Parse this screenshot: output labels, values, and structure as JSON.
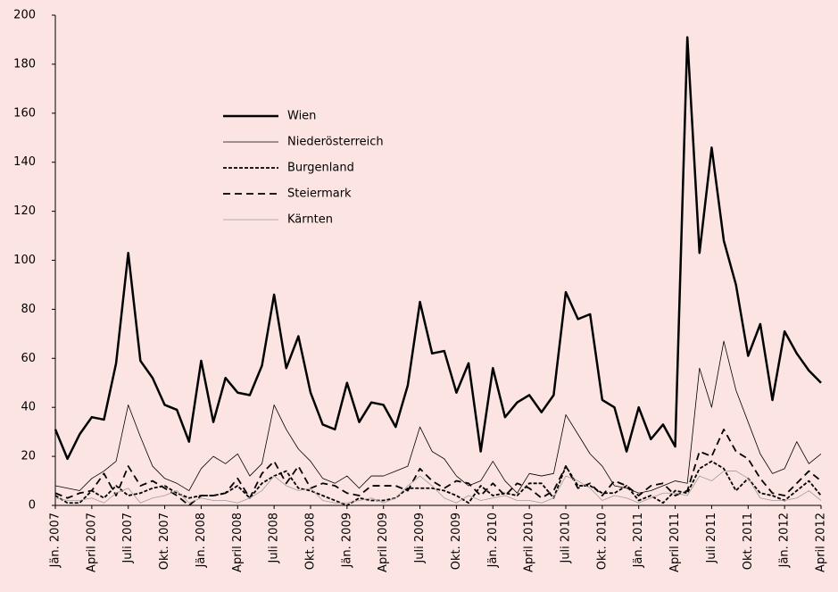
{
  "chart_data": {
    "type": "line",
    "categories": [
      "Jän. 2007",
      null,
      null,
      "April 2007",
      null,
      null,
      "Juli 2007",
      null,
      null,
      "Okt. 2007",
      null,
      null,
      "Jän. 2008",
      null,
      null,
      "April 2008",
      null,
      null,
      "Juli 2008",
      null,
      null,
      "Okt. 2008",
      null,
      null,
      "Jän. 2009",
      null,
      null,
      "April 2009",
      null,
      null,
      "Juli 2009",
      null,
      null,
      "Okt. 2009",
      null,
      null,
      "Jän. 2010",
      null,
      null,
      "April 2010",
      null,
      null,
      "Juli 2010",
      null,
      null,
      "Okt. 2010",
      null,
      null,
      "Jän. 2011",
      null,
      null,
      "April 2011",
      null,
      null,
      "Juli 2011",
      null,
      null,
      "Okt. 2011",
      null,
      null,
      "Jän. 2012",
      null,
      null,
      "April 2012"
    ],
    "series": [
      {
        "name": "Wien",
        "color": "#000000",
        "width": 2.5,
        "dash": "solid",
        "values": [
          31,
          19,
          29,
          36,
          35,
          58,
          103,
          59,
          52,
          41,
          39,
          26,
          59,
          34,
          52,
          46,
          45,
          57,
          86,
          56,
          69,
          46,
          33,
          31,
          50,
          34,
          42,
          41,
          32,
          49,
          83,
          62,
          63,
          46,
          58,
          22,
          56,
          36,
          42,
          45,
          38,
          45,
          87,
          76,
          78,
          43,
          40,
          22,
          40,
          27,
          33,
          24,
          191,
          103,
          146,
          108,
          90,
          61,
          74,
          43,
          71,
          62,
          55,
          50
        ]
      },
      {
        "name": "Niederösterreich",
        "color": "#000000",
        "width": 0.8,
        "dash": "solid",
        "values": [
          8,
          7,
          6,
          11,
          14,
          18,
          41,
          28,
          16,
          11,
          9,
          6,
          15,
          20,
          17,
          21,
          12,
          17,
          41,
          31,
          23,
          18,
          11,
          9,
          12,
          7,
          12,
          12,
          14,
          16,
          32,
          22,
          19,
          12,
          8,
          10,
          18,
          10,
          5,
          13,
          12,
          13,
          37,
          29,
          21,
          16,
          8,
          7,
          5,
          6,
          8,
          10,
          9,
          56,
          40,
          67,
          47,
          34,
          21,
          13,
          15,
          26,
          17,
          21
        ]
      },
      {
        "name": "Burgenland",
        "color": "#000000",
        "width": 1.8,
        "dash": "dotted",
        "values": [
          4,
          1,
          1,
          6,
          3,
          8,
          4,
          5,
          7,
          8,
          5,
          3,
          4,
          4,
          5,
          8,
          3,
          9,
          12,
          14,
          7,
          6,
          4,
          2,
          0,
          3,
          2,
          2,
          3,
          7,
          7,
          7,
          6,
          4,
          1,
          8,
          4,
          5,
          4,
          9,
          9,
          3,
          16,
          8,
          8,
          5,
          5,
          8,
          2,
          4,
          1,
          6,
          5,
          15,
          18,
          15,
          6,
          11,
          5,
          4,
          2,
          6,
          10,
          4
        ]
      },
      {
        "name": "Steiermark",
        "color": "#000000",
        "width": 1.8,
        "dash": "dashed",
        "values": [
          5,
          3,
          5,
          6,
          13,
          4,
          16,
          8,
          10,
          7,
          4,
          0,
          4,
          4,
          5,
          11,
          3,
          13,
          18,
          9,
          16,
          7,
          9,
          8,
          5,
          4,
          8,
          8,
          8,
          6,
          15,
          10,
          7,
          10,
          9,
          4,
          9,
          4,
          9,
          7,
          3,
          6,
          16,
          7,
          9,
          4,
          10,
          8,
          4,
          8,
          9,
          4,
          6,
          22,
          20,
          31,
          22,
          19,
          11,
          5,
          4,
          9,
          14,
          10
        ]
      },
      {
        "name": "Kärnten",
        "color": "#a09a9a",
        "width": 0.8,
        "dash": "solid",
        "values": [
          3,
          2,
          2,
          3,
          1,
          5,
          7,
          1,
          3,
          4,
          6,
          1,
          3,
          2,
          2,
          1,
          3,
          6,
          12,
          8,
          6,
          7,
          2,
          1,
          1,
          2,
          3,
          1,
          3,
          8,
          12,
          8,
          3,
          1,
          4,
          2,
          3,
          4,
          2,
          2,
          1,
          3,
          12,
          10,
          7,
          2,
          4,
          3,
          1,
          3,
          5,
          5,
          4,
          12,
          10,
          14,
          14,
          11,
          3,
          2,
          2,
          3,
          6,
          2
        ]
      }
    ],
    "ylim": [
      0,
      200
    ],
    "yticks": [
      0,
      20,
      40,
      60,
      80,
      100,
      120,
      140,
      160,
      180,
      200
    ],
    "grid": false
  }
}
